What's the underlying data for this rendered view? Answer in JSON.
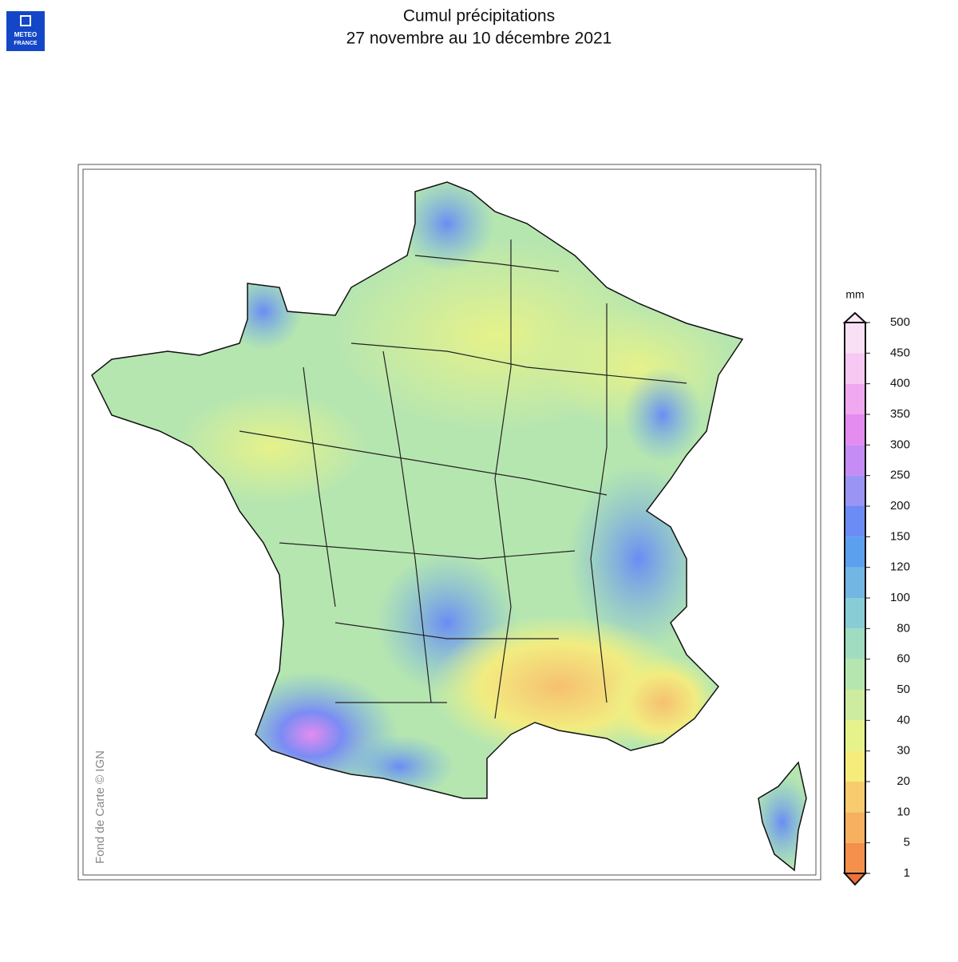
{
  "header": {
    "logo": [
      "METEO",
      "FRANCE"
    ],
    "title": [
      "Cumul précipitations",
      "27 novembre au 10 décembre 2021"
    ]
  },
  "map": {
    "credit": "Fond de Carte © IGN"
  },
  "colorbar": {
    "unit": "mm",
    "ticks": [
      1,
      5,
      10,
      20,
      30,
      40,
      50,
      60,
      80,
      100,
      120,
      150,
      200,
      250,
      300,
      350,
      400,
      450,
      500
    ],
    "colors": [
      "#f4904c",
      "#f6b060",
      "#f8cc6e",
      "#f6ec7c",
      "#e6f28a",
      "#cdeca0",
      "#b6e6b0",
      "#a0dcc0",
      "#88cdd6",
      "#72b6e4",
      "#5aa0ee",
      "#6a8cf4",
      "#9a94f4",
      "#c48cf4",
      "#e48cf0",
      "#f0a8f0",
      "#f6c8f2",
      "#fae0f4"
    ],
    "under": "#f07038",
    "over": "#fbe8f6"
  }
}
